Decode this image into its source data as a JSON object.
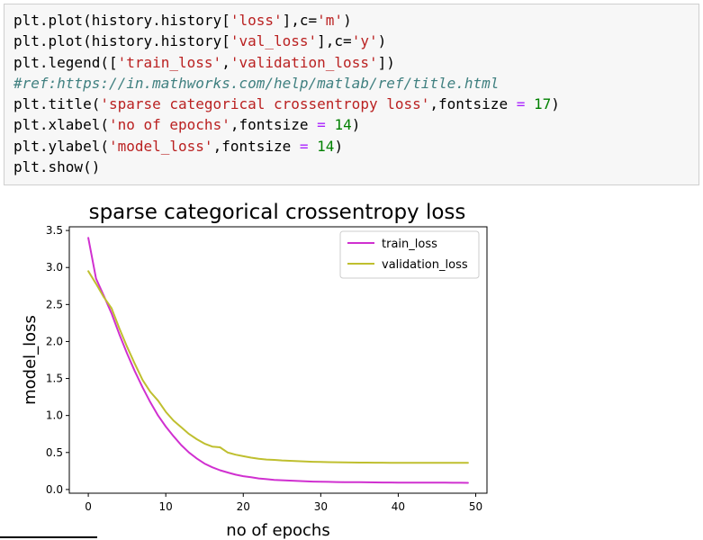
{
  "code_lines": [
    "plt.plot(history.history['loss'],c='m')",
    "plt.plot(history.history['val_loss'],c='y')",
    "plt.legend(['train_loss','validation_loss'])",
    "#ref:https://in.mathworks.com/help/matlab/ref/title.html",
    "plt.title('sparse categorical crossentropy loss',fontsize = 17)",
    "plt.xlabel('no of epochs',fontsize = 14)",
    "plt.ylabel('model_loss',fontsize = 14)",
    "plt.show()"
  ],
  "chart_data": {
    "type": "line",
    "title": "sparse categorical crossentropy loss",
    "xlabel": "no of epochs",
    "ylabel": "model_loss",
    "xlim": [
      -2.45,
      51.45
    ],
    "ylim": [
      -0.05,
      3.55
    ],
    "xticks": [
      0,
      10,
      20,
      30,
      40,
      50
    ],
    "yticks": [
      0.0,
      0.5,
      1.0,
      1.5,
      2.0,
      2.5,
      3.0,
      3.5
    ],
    "ytick_labels": [
      "0.0",
      "0.5",
      "1.0",
      "1.5",
      "2.0",
      "2.5",
      "3.0",
      "3.5"
    ],
    "legend_placement": "top-right",
    "grid": false,
    "x": [
      0,
      1,
      2,
      3,
      4,
      5,
      6,
      7,
      8,
      9,
      10,
      11,
      12,
      13,
      14,
      15,
      16,
      17,
      18,
      19,
      20,
      21,
      22,
      23,
      24,
      25,
      26,
      27,
      28,
      29,
      30,
      31,
      32,
      33,
      34,
      35,
      36,
      37,
      38,
      39,
      40,
      41,
      42,
      43,
      44,
      45,
      46,
      47,
      48,
      49
    ],
    "series": [
      {
        "name": "train_loss",
        "color": "#d030d0",
        "values": [
          3.4,
          2.85,
          2.62,
          2.38,
          2.1,
          1.84,
          1.6,
          1.38,
          1.18,
          1.0,
          0.85,
          0.72,
          0.6,
          0.5,
          0.42,
          0.35,
          0.3,
          0.26,
          0.23,
          0.2,
          0.18,
          0.165,
          0.15,
          0.14,
          0.13,
          0.125,
          0.12,
          0.115,
          0.11,
          0.107,
          0.105,
          0.103,
          0.101,
          0.1,
          0.099,
          0.098,
          0.097,
          0.096,
          0.095,
          0.095,
          0.094,
          0.094,
          0.093,
          0.093,
          0.092,
          0.092,
          0.092,
          0.091,
          0.091,
          0.09
        ]
      },
      {
        "name": "validation_loss",
        "color": "#bfbf2f",
        "values": [
          2.95,
          2.78,
          2.6,
          2.45,
          2.18,
          1.93,
          1.7,
          1.48,
          1.32,
          1.2,
          1.05,
          0.93,
          0.84,
          0.75,
          0.68,
          0.62,
          0.58,
          0.57,
          0.5,
          0.47,
          0.45,
          0.43,
          0.415,
          0.405,
          0.4,
          0.393,
          0.388,
          0.383,
          0.378,
          0.375,
          0.372,
          0.37,
          0.368,
          0.366,
          0.365,
          0.364,
          0.363,
          0.362,
          0.362,
          0.361,
          0.361,
          0.36,
          0.36,
          0.36,
          0.36,
          0.36,
          0.36,
          0.36,
          0.36,
          0.36
        ]
      }
    ]
  }
}
